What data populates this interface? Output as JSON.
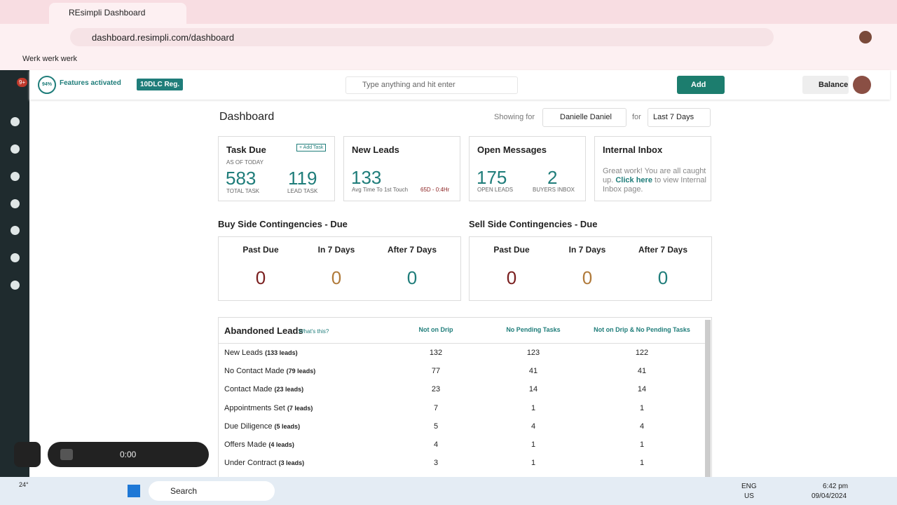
{
  "browser": {
    "tab_title": "REsimpli Dashboard",
    "url": "dashboard.resimpli.com/dashboard",
    "bookmark": "Werk werk werk"
  },
  "header": {
    "notification_badge": "9+",
    "progress": "94%",
    "features": "Features activated",
    "tag": "10DLC Reg.",
    "search_placeholder": "Type anything and hit enter",
    "add_button": "Add",
    "balance": "Balance"
  },
  "dashboard": {
    "title": "Dashboard",
    "showing_for": "Showing for",
    "user": "Danielle Daniel",
    "for": "for",
    "period": "Last 7 Days"
  },
  "cards": {
    "task_due": {
      "title": "Task Due",
      "add_task": "+ Add Task",
      "as_of": "AS OF TODAY",
      "total": 583,
      "total_label": "TOTAL TASK",
      "lead": 119,
      "lead_label": "LEAD TASK"
    },
    "new_leads": {
      "title": "New Leads",
      "value": 133,
      "caption": "Avg Time To 1st Touch",
      "avg_time": "65D - 0:4Hr"
    },
    "open_messages": {
      "title": "Open Messages",
      "open_leads": 175,
      "open_leads_label": "OPEN LEADS",
      "buyers_inbox": 2,
      "buyers_inbox_label": "BUYERS INBOX"
    },
    "internal_inbox": {
      "title": "Internal Inbox",
      "text_before": "Great work! You are all caught up.",
      "link": "Click here",
      "text_after": "to view Internal Inbox page."
    }
  },
  "contingencies": [
    {
      "title": "Buy Side Contingencies - Due",
      "columns": [
        "Past Due",
        "In 7 Days",
        "After 7 Days"
      ],
      "values": [
        0,
        0,
        0
      ]
    },
    {
      "title": "Sell Side Contingencies - Due",
      "columns": [
        "Past Due",
        "In 7 Days",
        "After 7 Days"
      ],
      "values": [
        0,
        0,
        0
      ]
    }
  ],
  "abandoned": {
    "title": "Abandoned Leads",
    "help": "What's this?",
    "headers": [
      "Not on Drip",
      "No Pending Tasks",
      "Not on Drip & No Pending Tasks"
    ],
    "rows": [
      {
        "name": "New Leads",
        "count": "(133 leads)",
        "values": [
          132,
          123,
          122
        ]
      },
      {
        "name": "No Contact Made",
        "count": "(79 leads)",
        "values": [
          77,
          41,
          41
        ]
      },
      {
        "name": "Contact Made",
        "count": "(23 leads)",
        "values": [
          23,
          14,
          14
        ]
      },
      {
        "name": "Appointments Set",
        "count": "(7 leads)",
        "values": [
          7,
          1,
          1
        ]
      },
      {
        "name": "Due Diligence",
        "count": "(5 leads)",
        "values": [
          5,
          4,
          4
        ]
      },
      {
        "name": "Offers Made",
        "count": "(4 leads)",
        "values": [
          4,
          1,
          1
        ]
      },
      {
        "name": "Under Contract",
        "count": "(3 leads)",
        "values": [
          3,
          1,
          1
        ]
      }
    ]
  },
  "recorder": {
    "time": "0:00"
  },
  "taskbar": {
    "weather": "24°",
    "search": "Search",
    "lang": "ENG",
    "region": "US",
    "time": "6:42 pm",
    "date": "09/04/2024"
  }
}
